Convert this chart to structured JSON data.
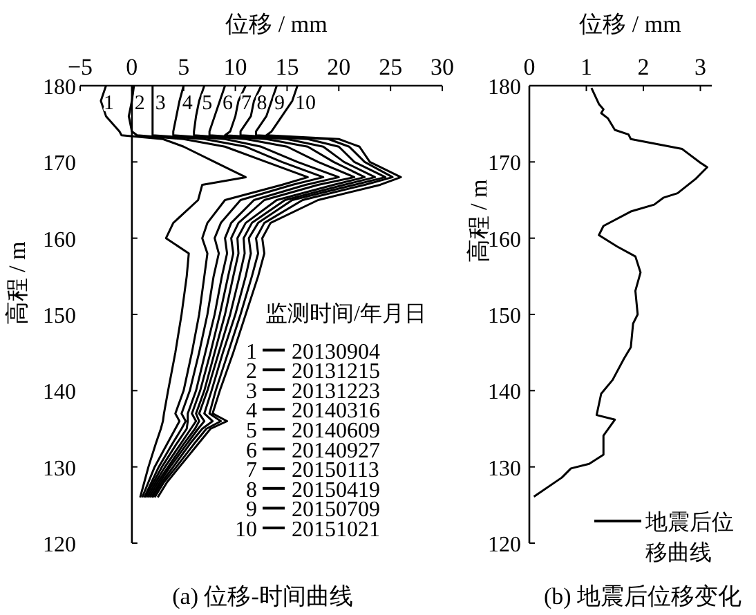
{
  "chart_data": [
    {
      "type": "line",
      "xlabel": "位移 / mm",
      "ylabel": "高程 / m",
      "xlim": [
        -5,
        30
      ],
      "xticks": [
        {
          "value": -5,
          "label": "−5"
        },
        0,
        5,
        10,
        15,
        20,
        25,
        30
      ],
      "ylim": [
        120,
        180
      ],
      "yticks": [
        120,
        130,
        140,
        150,
        160,
        170,
        180
      ],
      "legend_title": "监测时间/年月日",
      "legend": "bottom right",
      "series": [
        {
          "name": "20130904",
          "color": "#000000",
          "x": [
            0.8,
            1.2,
            1.6,
            2.3,
            2.8,
            3.0,
            3.1,
            3.5,
            4.2,
            4.8,
            5.3,
            5.5,
            3.3,
            4.0,
            6.4,
            6.8,
            11.0,
            8.0,
            5.0,
            3.0,
            -1.0,
            -1.2,
            -2.5,
            -3.0,
            -2.5
          ],
          "values": [
            126,
            128,
            130,
            133,
            135,
            136,
            137,
            140,
            145,
            150,
            155,
            158,
            160,
            162,
            165,
            167,
            168,
            170,
            172,
            173,
            173.5,
            174,
            176,
            178,
            180
          ]
        },
        {
          "name": "20131215",
          "color": "#000000",
          "x": [
            1.0,
            1.6,
            2.2,
            3.4,
            4.2,
            4.6,
            4.2,
            5.0,
            5.8,
            6.5,
            7.0,
            7.3,
            6.8,
            7.3,
            9.0,
            14.5,
            17.0,
            13.0,
            9.0,
            5.0,
            0.5,
            0.0,
            -0.3,
            0.0,
            0.2
          ],
          "values": [
            126,
            128,
            130,
            133,
            135,
            136,
            137,
            140,
            145,
            150,
            155,
            158,
            160,
            162,
            165,
            167,
            168,
            170,
            172,
            173,
            173.5,
            174,
            176,
            178,
            180
          ]
        },
        {
          "name": "20131223",
          "color": "#000000",
          "x": [
            1.2,
            1.9,
            2.6,
            3.9,
            4.8,
            5.2,
            4.8,
            5.6,
            6.5,
            7.3,
            7.9,
            8.4,
            8.0,
            8.6,
            10.5,
            15.5,
            18.5,
            14.5,
            11.0,
            7.0,
            2.0,
            2.0,
            2.0,
            2.0,
            2.0
          ],
          "values": [
            126,
            128,
            130,
            133,
            135,
            136,
            137,
            140,
            145,
            150,
            155,
            158,
            160,
            162,
            165,
            167,
            168,
            170,
            172,
            173,
            173.5,
            174,
            176,
            178,
            180
          ]
        },
        {
          "name": "20140316",
          "color": "#000000",
          "x": [
            1.3,
            2.1,
            2.9,
            4.3,
            5.3,
            5.4,
            5.4,
            6.2,
            7.1,
            8.0,
            8.7,
            9.2,
            9.0,
            9.6,
            11.8,
            16.8,
            20.0,
            16.0,
            12.5,
            9.0,
            4.0,
            4.0,
            4.3,
            4.6,
            5.0
          ],
          "values": [
            126,
            128,
            130,
            133,
            135,
            136,
            137,
            140,
            145,
            150,
            155,
            158,
            160,
            162,
            165,
            167,
            168,
            170,
            172,
            173,
            173.5,
            174,
            176,
            178,
            180
          ]
        },
        {
          "name": "20140609",
          "color": "#000000",
          "x": [
            1.5,
            2.3,
            3.2,
            4.7,
            5.7,
            6.2,
            5.8,
            6.6,
            7.6,
            8.5,
            9.3,
            9.8,
            9.6,
            10.3,
            12.8,
            18.0,
            21.5,
            18.0,
            15.0,
            11.0,
            6.0,
            6.0,
            6.2,
            6.5,
            7.0
          ],
          "values": [
            126,
            128,
            130,
            133,
            135,
            136,
            137,
            140,
            145,
            150,
            155,
            158,
            160,
            162,
            165,
            167,
            168,
            170,
            172,
            173,
            173.5,
            174,
            176,
            178,
            180
          ]
        },
        {
          "name": "20140927",
          "color": "#000000",
          "x": [
            1.7,
            2.5,
            3.5,
            5.0,
            6.1,
            6.5,
            6.2,
            7.0,
            8.0,
            9.0,
            9.8,
            10.3,
            10.2,
            11.0,
            14.0,
            19.5,
            22.5,
            19.5,
            17.0,
            13.0,
            7.5,
            7.5,
            8.0,
            8.5,
            9.0
          ],
          "values": [
            126,
            128,
            130,
            133,
            135,
            136,
            137,
            140,
            145,
            150,
            155,
            158,
            160,
            162,
            165,
            167,
            168,
            170,
            172,
            173,
            173.5,
            174,
            176,
            178,
            180
          ]
        },
        {
          "name": "20150113",
          "color": "#000000",
          "x": [
            1.9,
            2.7,
            3.7,
            5.3,
            6.4,
            7.0,
            6.5,
            7.3,
            8.4,
            9.5,
            10.4,
            10.9,
            10.8,
            11.6,
            14.8,
            20.5,
            23.5,
            20.5,
            18.5,
            15.0,
            9.0,
            9.5,
            10.0,
            10.3,
            11.0
          ],
          "values": [
            126,
            128,
            130,
            133,
            135,
            136,
            137,
            140,
            145,
            150,
            155,
            158,
            160,
            162,
            165,
            167,
            168,
            170,
            172,
            173,
            173.5,
            174,
            176,
            178,
            180
          ]
        },
        {
          "name": "20150419",
          "color": "#000000",
          "x": [
            2.0,
            2.9,
            4.0,
            5.6,
            6.8,
            7.8,
            7.0,
            7.7,
            8.8,
            10.0,
            11.0,
            11.5,
            11.3,
            12.2,
            15.5,
            21.5,
            24.5,
            21.5,
            20.0,
            17.0,
            10.5,
            10.5,
            11.5,
            11.8,
            12.5
          ],
          "values": [
            126,
            128,
            130,
            133,
            135,
            136,
            137,
            140,
            145,
            150,
            155,
            158,
            160,
            162,
            165,
            167,
            168,
            170,
            172,
            173,
            173.5,
            174,
            176,
            178,
            180
          ]
        },
        {
          "name": "20150709",
          "color": "#000000",
          "x": [
            2.2,
            3.1,
            4.3,
            6.0,
            7.2,
            8.6,
            7.5,
            8.1,
            9.3,
            10.5,
            11.6,
            12.2,
            12.0,
            12.8,
            16.5,
            22.5,
            25.2,
            22.5,
            21.0,
            19.0,
            12.0,
            12.0,
            13.0,
            13.5,
            14.0
          ],
          "values": [
            126,
            128,
            130,
            133,
            135,
            136,
            137,
            140,
            145,
            150,
            155,
            158,
            160,
            162,
            165,
            167,
            168,
            170,
            172,
            173,
            173.5,
            174,
            176,
            178,
            180
          ]
        },
        {
          "name": "20151021",
          "color": "#000000",
          "x": [
            2.5,
            3.4,
            4.6,
            6.4,
            7.6,
            9.2,
            7.8,
            8.5,
            9.8,
            11.0,
            12.2,
            12.8,
            12.6,
            13.4,
            18.0,
            24.0,
            26.0,
            23.0,
            22.0,
            20.0,
            13.0,
            13.5,
            14.5,
            15.5,
            16.0
          ],
          "values": [
            126,
            128,
            130,
            133,
            135,
            136,
            137,
            140,
            145,
            150,
            155,
            158,
            160,
            162,
            165,
            167,
            168,
            170,
            172,
            173,
            173.5,
            174,
            176,
            178,
            180
          ]
        }
      ],
      "annotations": [
        "(a) 位移-时间曲线",
        {
          "text": "1",
          "x": -3.0,
          "y": 178
        },
        {
          "text": "2",
          "x": 0.0,
          "y": 178
        },
        {
          "text": "3",
          "x": 2.0,
          "y": 178
        },
        {
          "text": "4",
          "x": 4.6,
          "y": 178
        },
        {
          "text": "5",
          "x": 6.5,
          "y": 178
        },
        {
          "text": "6",
          "x": 8.5,
          "y": 178
        },
        {
          "text": "7",
          "x": 10.3,
          "y": 178
        },
        {
          "text": "8",
          "x": 11.8,
          "y": 178
        },
        {
          "text": "9",
          "x": 13.5,
          "y": 178
        },
        {
          "text": "10",
          "x": 15.5,
          "y": 178
        }
      ]
    },
    {
      "type": "line",
      "xlabel": "位移 / mm",
      "ylabel": "高程 / m",
      "xlim": [
        0,
        3.2
      ],
      "xticks": [
        0,
        1,
        2,
        3
      ],
      "ylim": [
        120,
        180
      ],
      "yticks": [
        120,
        130,
        140,
        150,
        160,
        170,
        180
      ],
      "legend": "bottom right",
      "series": [
        {
          "name": "地震后位移曲线",
          "color": "#000000",
          "x": [
            1.09,
            1.22,
            1.3,
            1.26,
            1.38,
            1.5,
            1.74,
            1.78,
            2.27,
            2.68,
            3.0,
            3.12,
            2.92,
            2.6,
            2.35,
            2.19,
            1.78,
            1.3,
            1.22,
            1.54,
            1.86,
            1.95,
            1.86,
            1.9,
            1.82,
            1.78,
            1.66,
            1.46,
            1.26,
            1.18,
            1.5,
            1.3,
            1.3,
            1.05,
            0.73,
            0.57,
            0.08
          ],
          "values": [
            179.7,
            177.6,
            176.9,
            176.4,
            175.7,
            174.2,
            173.6,
            173.0,
            172.3,
            171.7,
            169.9,
            169.3,
            167.8,
            165.9,
            165.3,
            164.4,
            163.5,
            161.6,
            160.4,
            158.9,
            157.6,
            155.5,
            153.1,
            150.0,
            148.8,
            145.7,
            144.2,
            141.4,
            139.6,
            136.8,
            136.2,
            134.1,
            131.6,
            130.4,
            129.8,
            128.6,
            126.1
          ]
        }
      ],
      "annotations": [
        "(b) 地震后位移变化"
      ]
    }
  ]
}
